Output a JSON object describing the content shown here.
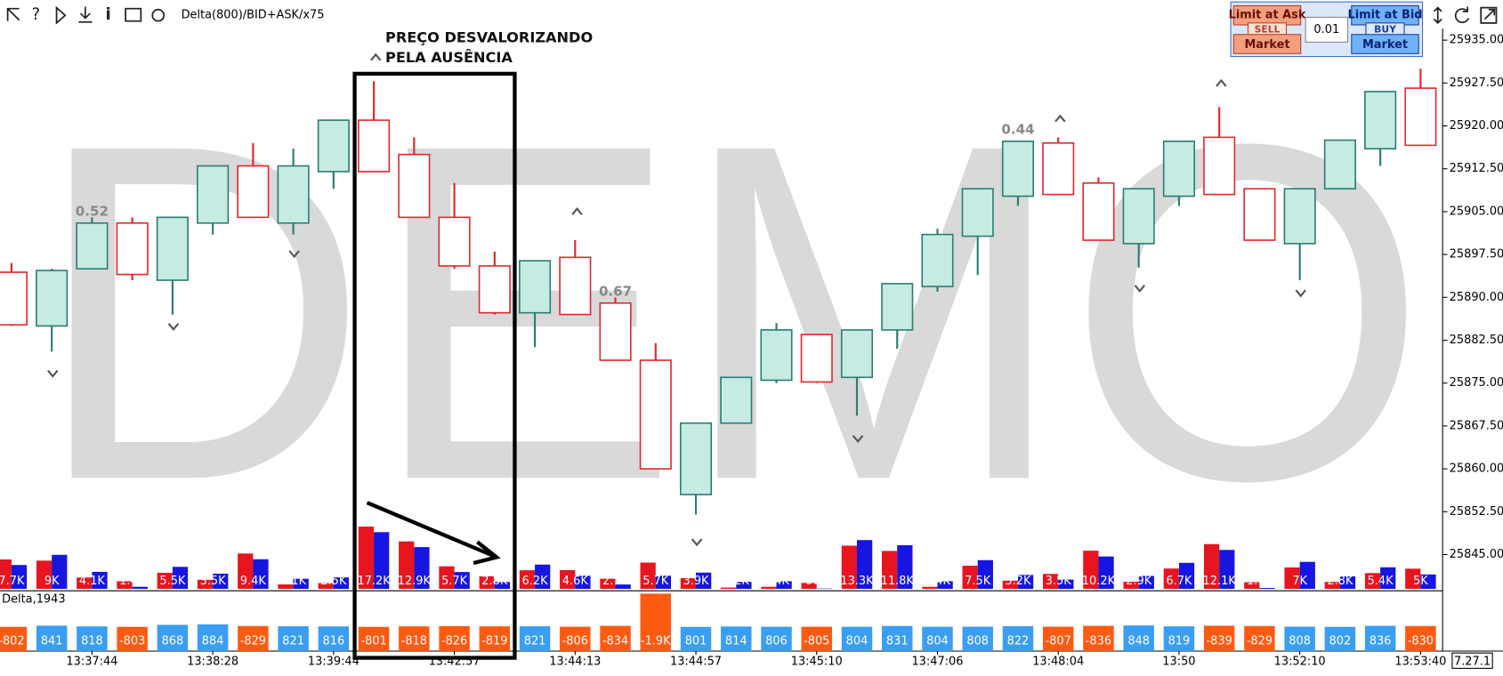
{
  "toolbar": {
    "indicator": "Delta(800)/BID+ASK/x75"
  },
  "order_panel": {
    "limit_ask": "Limit at Ask",
    "sell": "SELL",
    "market_sell": "Market",
    "quantity": "0.01",
    "limit_bid": "Limit at Bid",
    "buy": "BUY",
    "market_buy": "Market"
  },
  "watermark": "DEMO",
  "version": "7.27.1",
  "chart_data": {
    "type": "candlestick",
    "annotation": [
      "PREÇO DESVALORIZANDO",
      "PELA AUSÊNCIA"
    ],
    "categories": [
      null,
      null,
      "13:37:44",
      null,
      null,
      "13:38:28",
      null,
      null,
      "13:39:44",
      null,
      null,
      "13:42:57",
      null,
      null,
      "13:44:13",
      null,
      null,
      "13:44:57",
      null,
      null,
      "13:45:10",
      null,
      null,
      "13:47:06",
      null,
      null,
      "13:48:04",
      null,
      null,
      "13:50",
      null,
      null,
      "13:52:10",
      null,
      null,
      "13:53:40"
    ],
    "open": [
      25894.4,
      25885,
      25895,
      25903,
      25893,
      25903,
      25913,
      25903,
      25912,
      25921,
      25915,
      25904,
      25895.5,
      25887.3,
      25897,
      25889,
      25879,
      25855.5,
      25868,
      25875.5,
      25883.5,
      25876,
      25884.3,
      25891.9,
      25900.7,
      25907.7,
      25917,
      25910,
      25899.4,
      25907.7,
      25918,
      25909,
      25899.4,
      25909,
      25916,
      25926.6
    ],
    "high": [
      25896,
      25895,
      25904,
      25904,
      25904,
      25913,
      25917,
      25916,
      25921,
      25927.8,
      25918,
      25910,
      25898,
      25896.4,
      25900,
      25890,
      25882,
      25868,
      25876,
      25885.5,
      25883.5,
      25884.3,
      25892.4,
      25902,
      25909,
      25917.3,
      25918,
      25911,
      25909,
      25917.3,
      25923.3,
      25909,
      25909,
      25917.5,
      25926,
      25930
    ],
    "low": [
      25885,
      25880.5,
      25895,
      25893,
      25887,
      25901,
      25904,
      25901,
      25909,
      25912,
      25904,
      25895,
      25887,
      25881.3,
      25887,
      25879,
      25860,
      25852,
      25868,
      25875,
      25875,
      25869.3,
      25881,
      25891,
      25893.9,
      25906,
      25908,
      25900,
      25895.2,
      25906,
      25908,
      25900,
      25893,
      25909,
      25913,
      25916.6
    ],
    "close": [
      25885.2,
      25894.7,
      25903,
      25894,
      25904,
      25913,
      25904,
      25913,
      25921,
      25912,
      25904,
      25895.5,
      25887.3,
      25896.4,
      25887,
      25879,
      25860,
      25868,
      25876,
      25884.3,
      25875.2,
      25884.3,
      25892.4,
      25901,
      25909,
      25917.3,
      25908,
      25900,
      25909,
      25917.3,
      25908,
      25900,
      25909,
      25917.5,
      25926,
      25916.6
    ],
    "candle_notes": [
      null,
      null,
      "0.52",
      null,
      null,
      null,
      null,
      null,
      null,
      null,
      null,
      null,
      null,
      null,
      null,
      "0.67",
      null,
      null,
      null,
      null,
      null,
      null,
      null,
      null,
      null,
      "0.44",
      null,
      null,
      null,
      null,
      null,
      null,
      null,
      null,
      null,
      null
    ],
    "ylim": [
      25839,
      25937
    ],
    "yticks": [
      {
        "value": 25935,
        "label": "25935.00"
      },
      {
        "value": 25927.5,
        "label": "25927.50"
      },
      {
        "value": 25920,
        "label": "25920.00"
      },
      {
        "value": 25912.5,
        "label": "25912.50"
      },
      {
        "value": 25905,
        "label": "25905.00"
      },
      {
        "value": 25897.5,
        "label": "25897.50"
      },
      {
        "value": 25890,
        "label": "25890.00"
      },
      {
        "value": 25882.5,
        "label": "25882.50"
      },
      {
        "value": 25875,
        "label": "25875.00"
      },
      {
        "value": 25867.5,
        "label": "25867.50"
      },
      {
        "value": 25860,
        "label": "25860.00"
      },
      {
        "value": 25852.5,
        "label": "25852.50"
      },
      {
        "value": 25845,
        "label": "25845.00"
      }
    ],
    "up_color": "#c6ebe2",
    "up_edge": "#2a7d74",
    "down_color": "#ffffff",
    "down_edge": "#e0282d",
    "volume": {
      "values": [
        7700,
        9000,
        4100,
        1400,
        5500,
        3500,
        9400,
        2100,
        2500,
        17200,
        12900,
        5700,
        2800,
        6200,
        4600,
        2100,
        5700,
        3900,
        1200,
        1400,
        908,
        13300,
        11800,
        1400,
        7500,
        3200,
        3500,
        10200,
        2900,
        6700,
        12100,
        1100,
        7000,
        2800,
        5400,
        5000
      ],
      "value_labels": [
        "7.7K",
        "9K",
        "4.1K",
        "1.4K",
        "5.5K",
        "3.5K",
        "9.4K",
        "2.1K",
        "2.5K",
        "17.2K",
        "12.9K",
        "5.7K",
        "2.8K",
        "6.2K",
        "4.6K",
        "2.1K",
        "5.7K",
        "3.9K",
        "1.2K",
        "1.4K",
        "908",
        "13.3K",
        "11.8K",
        "1.4K",
        "7.5K",
        "3.2K",
        "3.5K",
        "10.2K",
        "2.9K",
        "6.7K",
        "12.1K",
        "1.1K",
        "7K",
        "2.8K",
        "5.4K",
        "5K"
      ],
      "sell_color": "#e8141e",
      "buy_color": "#1616e0"
    },
    "delta": {
      "title": "Delta,1943",
      "values": [
        -802,
        841,
        818,
        -803,
        868,
        884,
        -829,
        821,
        816,
        -801,
        -818,
        -826,
        -819,
        821,
        -806,
        -834,
        -1900,
        801,
        814,
        806,
        -805,
        804,
        831,
        804,
        808,
        822,
        -807,
        -836,
        848,
        819,
        -839,
        -829,
        808,
        802,
        836,
        -830
      ],
      "value_labels": [
        "-802",
        "841",
        "818",
        "-803",
        "868",
        "884",
        "-829",
        "821",
        "816",
        "-801",
        "-818",
        "-826",
        "-819",
        "821",
        "-806",
        "-834",
        "-1.9K",
        "801",
        "814",
        "806",
        "-805",
        "804",
        "831",
        "804",
        "808",
        "822",
        "-807",
        "-836",
        "848",
        "819",
        "-839",
        "-829",
        "808",
        "802",
        "836",
        "-830"
      ],
      "negative_color": "#ff5a12",
      "positive_color": "#3a9ef2"
    }
  }
}
